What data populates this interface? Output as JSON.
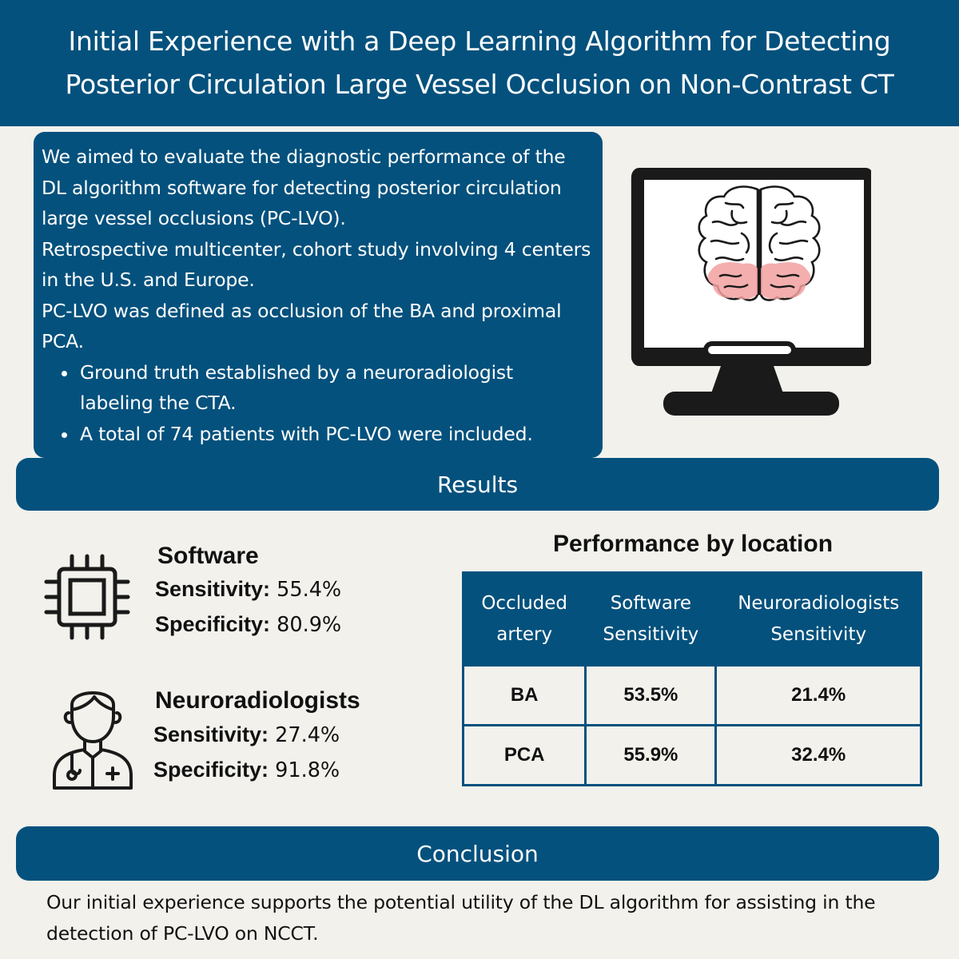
{
  "header": {
    "title_line1": "Initial Experience with a Deep Learning Algorithm for Detecting",
    "title_line2": "Posterior Circulation Large Vessel Occlusion on Non-Contrast CT"
  },
  "intro": {
    "paragraphs": [
      "We aimed to evaluate the diagnostic performance of the DL algorithm software for detecting posterior circulation large vessel occlusions (PC-LVO).",
      "Retrospective multicenter, cohort study involving 4 centers in the U.S. and Europe.",
      "PC-LVO was defined as occlusion of the BA and proximal PCA."
    ],
    "bullets": [
      "Ground truth established by a neuroradiologist labeling the CTA.",
      "A total of 74 patients with PC-LVO were included."
    ]
  },
  "results": {
    "heading": "Results",
    "software": {
      "title": "Software",
      "sensitivity_label": "Sensitivity:",
      "sensitivity_value": "55.4%",
      "specificity_label": "Specificity:",
      "specificity_value": "80.9%"
    },
    "neuroradiologists": {
      "title": "Neuroradiologists",
      "sensitivity_label": "Sensitivity:",
      "sensitivity_value": "27.4%",
      "specificity_label": "Specificity:",
      "specificity_value": "91.8%"
    }
  },
  "performance": {
    "title": "Performance by location",
    "headers": {
      "col1_line1": "Occluded",
      "col1_line2": "artery",
      "col2_line1": "Software",
      "col2_line2": "Sensitivity",
      "col3_line1": "Neuroradiologists",
      "col3_line2": "Sensitivity"
    },
    "rows": [
      {
        "artery": "BA",
        "software": "53.5%",
        "neuro": "21.4%"
      },
      {
        "artery": "PCA",
        "software": "55.9%",
        "neuro": "32.4%"
      }
    ]
  },
  "conclusion": {
    "heading": "Conclusion",
    "text": "Our initial experience supports the potential utility of the DL algorithm for assisting in the detection of PC-LVO on NCCT."
  },
  "colors": {
    "primary": "#04517d",
    "background": "#f2f1ec",
    "brain_highlight": "#f2a0a0"
  },
  "icons": [
    "monitor-brain-icon",
    "chip-icon",
    "doctor-icon"
  ]
}
